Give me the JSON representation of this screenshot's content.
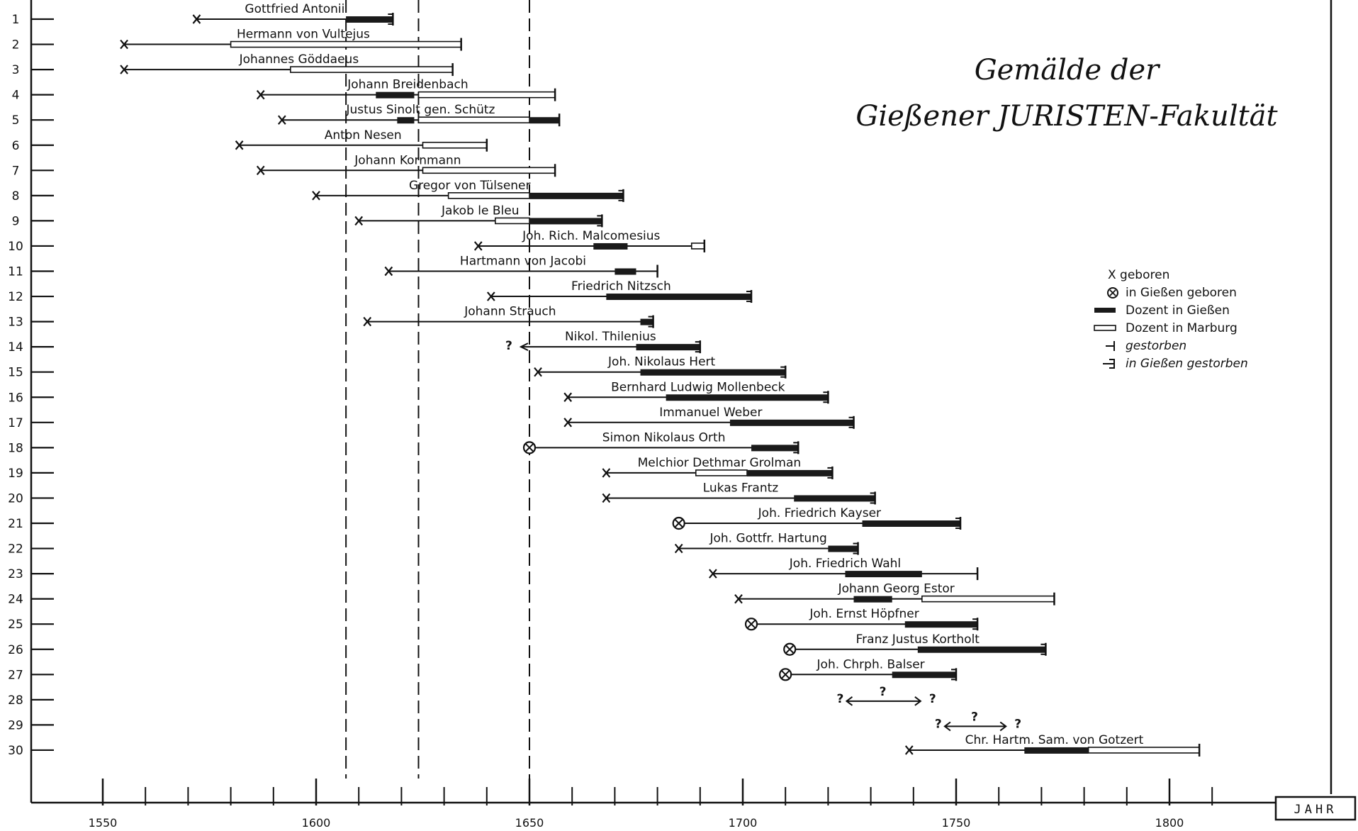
{
  "title_line1": "Gemälde der",
  "title_line2": "Gießener JURISTEN-Fakultät",
  "legend": [
    {
      "symbol": "cross",
      "label": "X geboren"
    },
    {
      "symbol": "circle-cross",
      "label": "in Gießen geboren"
    },
    {
      "symbol": "bar-giessen",
      "label": "Dozent in Gießen"
    },
    {
      "symbol": "bar-marburg",
      "label": "Dozent in Marburg"
    },
    {
      "symbol": "died",
      "label": "gestorben"
    },
    {
      "symbol": "died-giessen",
      "label": "in Gießen gestorben"
    }
  ],
  "chart_data": {
    "type": "timeline",
    "xlabel": "JAHR",
    "x_tick_labels": [
      "1550",
      "1600",
      "1650",
      "1700",
      "1750",
      "1800"
    ],
    "xlim": [
      1531,
      1840
    ],
    "reference_years": [
      1607,
      1624,
      1650
    ],
    "rows": [
      {
        "n": "1",
        "name": "Gottfried Antonii",
        "born": 1572,
        "died": 1618,
        "giessen": [
          1607,
          1618
        ],
        "died_giessen": true
      },
      {
        "n": "2",
        "name": "Hermann von Vultejus",
        "born": 1555,
        "died": 1634,
        "marburg": [
          1580,
          1634
        ]
      },
      {
        "n": "3",
        "name": "Johannes Göddaeus",
        "born": 1555,
        "died": 1632,
        "marburg": [
          1594,
          1632
        ]
      },
      {
        "n": "4",
        "name": "Johann Breidenbach",
        "born": 1587,
        "died": 1656,
        "giessen": [
          1614,
          1623
        ],
        "marburg": [
          1624,
          1656
        ]
      },
      {
        "n": "5",
        "name": "Justus Sinolt gen. Schütz",
        "born": 1592,
        "died": 1657,
        "giessen": [
          1619,
          1623
        ],
        "marburg": [
          1624,
          1650
        ],
        "giessen2": [
          1650,
          1657
        ]
      },
      {
        "n": "6",
        "name": "Anton Nesen",
        "born": 1582,
        "died": 1640,
        "marburg": [
          1625,
          1640
        ]
      },
      {
        "n": "7",
        "name": "Johann Kornmann",
        "born": 1587,
        "died": 1656,
        "marburg": [
          1625,
          1656
        ]
      },
      {
        "n": "8",
        "name": "Gregor von Tülsener",
        "born": 1600,
        "died": 1672,
        "marburg": [
          1631,
          1650
        ],
        "giessen": [
          1650,
          1672
        ],
        "died_giessen": true
      },
      {
        "n": "9",
        "name": "Jakob le Bleu",
        "born": 1610,
        "died": 1667,
        "marburg": [
          1642,
          1650
        ],
        "giessen": [
          1650,
          1667
        ],
        "died_giessen": true
      },
      {
        "n": "10",
        "name": "Joh. Rich. Malcomesius",
        "born": 1638,
        "died": 1691,
        "giessen": [
          1665,
          1673
        ],
        "marburg": [
          1688,
          1691
        ]
      },
      {
        "n": "11",
        "name": "Hartmann von Jacobi",
        "born": 1617,
        "died": 1680,
        "giessen": [
          1670,
          1675
        ]
      },
      {
        "n": "12",
        "name": "Friedrich Nitzsch",
        "born": 1641,
        "died": 1702,
        "giessen": [
          1668,
          1702
        ],
        "died_giessen": true
      },
      {
        "n": "13",
        "name": "Johann Strauch",
        "born": 1612,
        "died": 1679,
        "giessen": [
          1676,
          1679
        ],
        "died_giessen": true
      },
      {
        "n": "14",
        "name": "Nikol. Thilenius",
        "born": null,
        "birth_note": "?",
        "died": 1690,
        "giessen": [
          1675,
          1690
        ],
        "died_giessen": true
      },
      {
        "n": "15",
        "name": "Joh. Nikolaus Hert",
        "born": 1652,
        "died": 1710,
        "giessen": [
          1676,
          1710
        ],
        "died_giessen": true
      },
      {
        "n": "16",
        "name": "Bernhard Ludwig Mollenbeck",
        "born": 1659,
        "died": 1720,
        "giessen": [
          1682,
          1720
        ],
        "died_giessen": true
      },
      {
        "n": "17",
        "name": "Immanuel Weber",
        "born": 1659,
        "died": 1726,
        "giessen": [
          1697,
          1726
        ],
        "died_giessen": true
      },
      {
        "n": "18",
        "name": "Simon Nikolaus Orth",
        "born": 1650,
        "born_giessen": true,
        "died": 1713,
        "giessen": [
          1702,
          1713
        ],
        "died_giessen": true
      },
      {
        "n": "19",
        "name": "Melchior Dethmar Grolman",
        "born": 1668,
        "died": 1721,
        "marburg": [
          1689,
          1701
        ],
        "giessen": [
          1701,
          1721
        ],
        "died_giessen": true
      },
      {
        "n": "20",
        "name": "Lukas Frantz",
        "born": 1668,
        "died": 1731,
        "giessen": [
          1712,
          1731
        ],
        "died_giessen": true
      },
      {
        "n": "21",
        "name": "Joh. Friedrich Kayser",
        "born": 1685,
        "born_giessen": true,
        "died": 1751,
        "giessen": [
          1728,
          1751
        ],
        "died_giessen": true
      },
      {
        "n": "22",
        "name": "Joh. Gottfr. Hartung",
        "born": 1685,
        "died": 1727,
        "giessen": [
          1720,
          1727
        ],
        "died_giessen": true
      },
      {
        "n": "23",
        "name": "Joh. Friedrich Wahl",
        "born": 1693,
        "died": 1755,
        "giessen": [
          1724,
          1742
        ]
      },
      {
        "n": "24",
        "name": "Johann Georg Estor",
        "born": 1699,
        "died": 1773,
        "giessen": [
          1726,
          1735
        ],
        "marburg": [
          1742,
          1773
        ]
      },
      {
        "n": "25",
        "name": "Joh. Ernst Höpfner",
        "born": 1702,
        "born_giessen": true,
        "died": 1755,
        "giessen": [
          1738,
          1755
        ],
        "died_giessen": true
      },
      {
        "n": "26",
        "name": "Franz Justus Kortholt",
        "born": 1711,
        "born_giessen": true,
        "died": 1771,
        "giessen": [
          1741,
          1771
        ],
        "died_giessen": true
      },
      {
        "n": "27",
        "name": "Joh. Chrph. Balser",
        "born": 1710,
        "born_giessen": true,
        "died": 1750,
        "giessen": [
          1735,
          1750
        ],
        "died_giessen": true
      },
      {
        "n": "28",
        "name": "",
        "born": null,
        "died": null,
        "unknown_span": [
          1723,
          1743
        ],
        "question_marks": [
          "?",
          "?",
          "?"
        ]
      },
      {
        "n": "29",
        "name": "",
        "born": null,
        "died": null,
        "unknown_span": [
          1746,
          1763
        ],
        "question_marks": [
          "?",
          "?",
          "?"
        ]
      },
      {
        "n": "30",
        "name": "Chr. Hartm. Sam. von Gotzert",
        "born": 1739,
        "died": 1807,
        "giessen": [
          1766,
          1781
        ],
        "marburg": [
          1781,
          1807
        ]
      }
    ]
  }
}
